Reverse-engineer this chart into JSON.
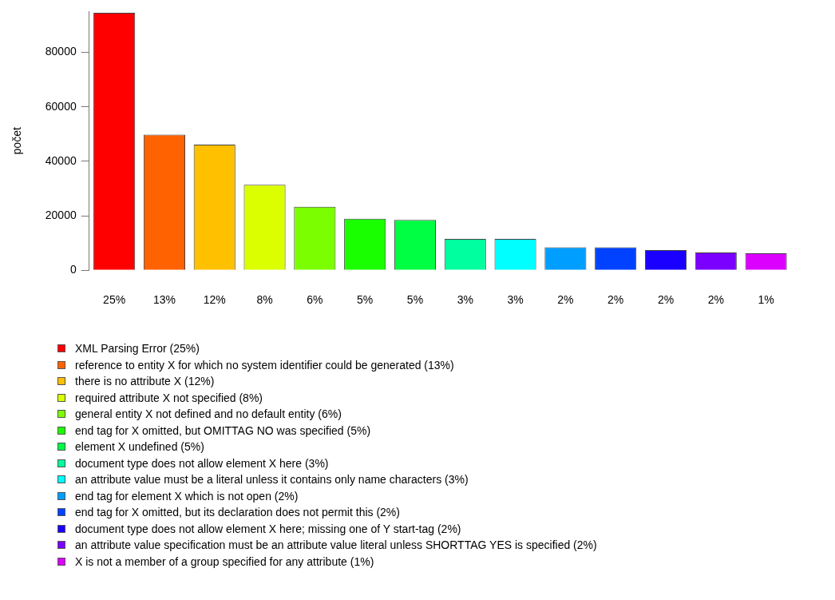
{
  "chart_data": {
    "type": "bar",
    "ylabel": "počet",
    "legend": "bottom",
    "grid": false,
    "categories": [
      "25%",
      "13%",
      "12%",
      "8%",
      "6%",
      "5%",
      "5%",
      "3%",
      "3%",
      "2%",
      "2%",
      "2%",
      "2%",
      "1%"
    ],
    "ylim": [
      0,
      95000
    ],
    "yticks": [
      0,
      20000,
      40000,
      60000,
      80000
    ],
    "series": [
      {
        "name": "XML Parsing Error (25%)",
        "color": "#ff0000",
        "values": [
          94500,
          null,
          null,
          null,
          null,
          null,
          null,
          null,
          null,
          null,
          null,
          null,
          null,
          null
        ]
      },
      {
        "name": "reference to entity X for which no system identifier could be generated (13%)",
        "color": "#ff6200",
        "values": [
          null,
          49800,
          null,
          null,
          null,
          null,
          null,
          null,
          null,
          null,
          null,
          null,
          null,
          null
        ]
      },
      {
        "name": "there is no attribute X (12%)",
        "color": "#ffc000",
        "values": [
          null,
          null,
          46100,
          null,
          null,
          null,
          null,
          null,
          null,
          null,
          null,
          null,
          null,
          null
        ]
      },
      {
        "name": "required attribute X not specified (8%)",
        "color": "#dcff00",
        "values": [
          null,
          null,
          null,
          31400,
          null,
          null,
          null,
          null,
          null,
          null,
          null,
          null,
          null,
          null
        ]
      },
      {
        "name": "general entity X not defined and no default entity (6%)",
        "color": "#7bff00",
        "values": [
          null,
          null,
          null,
          null,
          23300,
          null,
          null,
          null,
          null,
          null,
          null,
          null,
          null,
          null
        ]
      },
      {
        "name": "end tag for X omitted, but OMITTAG NO was specified (5%)",
        "color": "#1aff00",
        "values": [
          null,
          null,
          null,
          null,
          null,
          18900,
          null,
          null,
          null,
          null,
          null,
          null,
          null,
          null
        ]
      },
      {
        "name": "element X undefined (5%)",
        "color": "#00ff42",
        "values": [
          null,
          null,
          null,
          null,
          null,
          null,
          18500,
          null,
          null,
          null,
          null,
          null,
          null,
          null
        ]
      },
      {
        "name": "document type does not allow element X here (3%)",
        "color": "#00ff9e",
        "values": [
          null,
          null,
          null,
          null,
          null,
          null,
          null,
          11500,
          null,
          null,
          null,
          null,
          null,
          null
        ]
      },
      {
        "name": "an attribute value must be a literal unless it contains only name characters (3%)",
        "color": "#00ffff",
        "values": [
          null,
          null,
          null,
          null,
          null,
          null,
          null,
          null,
          11500,
          null,
          null,
          null,
          null,
          null
        ]
      },
      {
        "name": "end tag for element X which is not open (2%)",
        "color": "#009eff",
        "values": [
          null,
          null,
          null,
          null,
          null,
          null,
          null,
          null,
          null,
          8400,
          null,
          null,
          null,
          null
        ]
      },
      {
        "name": "end tag for X omitted, but its declaration does not permit this (2%)",
        "color": "#0042ff",
        "values": [
          null,
          null,
          null,
          null,
          null,
          null,
          null,
          null,
          null,
          null,
          8400,
          null,
          null,
          null
        ]
      },
      {
        "name": "document type does not allow element X here; missing one of Y start-tag (2%)",
        "color": "#1a00ff",
        "values": [
          null,
          null,
          null,
          null,
          null,
          null,
          null,
          null,
          null,
          null,
          null,
          7400,
          null,
          null
        ]
      },
      {
        "name": "an attribute value specification must be an attribute value literal unless SHORTTAG YES is specified (2%)",
        "color": "#7b00ff",
        "values": [
          null,
          null,
          null,
          null,
          null,
          null,
          null,
          null,
          null,
          null,
          null,
          null,
          6500,
          null
        ]
      },
      {
        "name": "X is not a member of a group specified for any attribute (1%)",
        "color": "#dc00ff",
        "values": [
          null,
          null,
          null,
          null,
          null,
          null,
          null,
          null,
          null,
          null,
          null,
          null,
          null,
          6200
        ]
      }
    ]
  }
}
